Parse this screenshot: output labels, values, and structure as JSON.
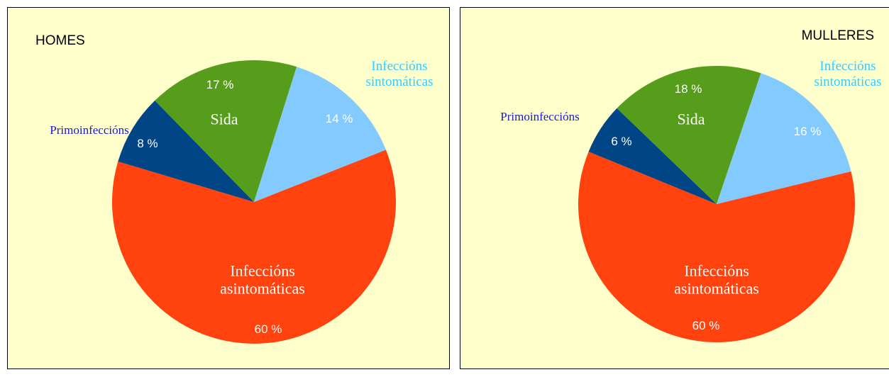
{
  "chart_data": [
    {
      "type": "pie",
      "title": "HOMES",
      "categories": [
        "Infeccións asintomáticas",
        "Primoinfeccións",
        "Sida",
        "Infeccións sintomáticas"
      ],
      "values": [
        60,
        8,
        17,
        14
      ],
      "value_labels": [
        "60 %",
        "8 %",
        "17 %",
        "14 %"
      ],
      "colors": [
        "#ff420e",
        "#004586",
        "#579d1c",
        "#83caff"
      ]
    },
    {
      "type": "pie",
      "title": "MULLERES",
      "categories": [
        "Infeccións asintomáticas",
        "Primoinfeccións",
        "Sida",
        "Infeccións sintomáticas"
      ],
      "values": [
        60,
        6,
        18,
        16
      ],
      "value_labels": [
        "60 %",
        "6 %",
        "18 %",
        "16 %"
      ],
      "colors": [
        "#ff420e",
        "#004586",
        "#579d1c",
        "#83caff"
      ]
    }
  ]
}
